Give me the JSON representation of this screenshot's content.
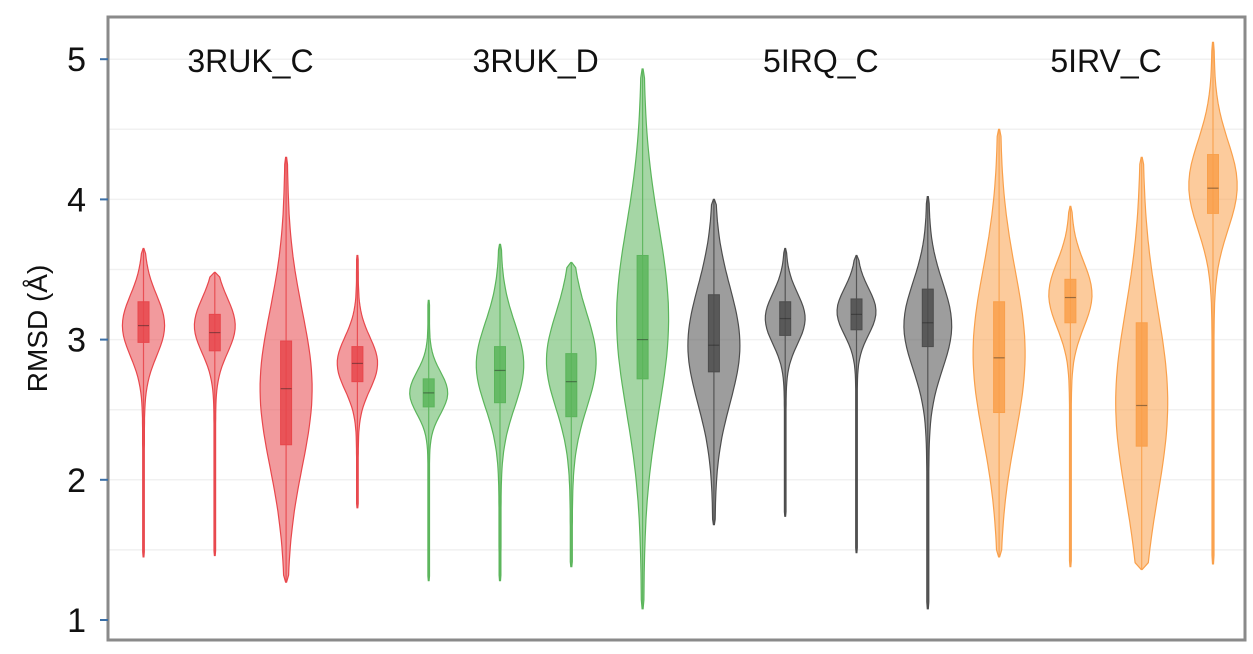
{
  "chart_data": {
    "type": "violin",
    "ylabel": "RMSD (Å)",
    "ylim": [
      1,
      5.3
    ],
    "yticks": [
      1,
      2,
      3,
      4,
      5
    ],
    "grid": true,
    "groups": [
      {
        "label": "3RUK_C",
        "color": "#e8474c",
        "violins": [
          {
            "min": 1.45,
            "max": 3.65,
            "q1": 2.98,
            "median": 3.1,
            "q3": 3.27,
            "mode": 3.1
          },
          {
            "min": 1.46,
            "max": 3.48,
            "q1": 2.92,
            "median": 3.05,
            "q3": 3.18,
            "mode": 3.1
          },
          {
            "min": 1.27,
            "max": 4.3,
            "q1": 2.25,
            "median": 2.65,
            "q3": 2.99,
            "mode": 2.65
          },
          {
            "min": 1.8,
            "max": 3.6,
            "q1": 2.7,
            "median": 2.83,
            "q3": 2.95,
            "mode": 2.83
          }
        ]
      },
      {
        "label": "3RUK_D",
        "color": "#5bb55b",
        "violins": [
          {
            "min": 1.28,
            "max": 3.28,
            "q1": 2.52,
            "median": 2.62,
            "q3": 2.72,
            "mode": 2.62
          },
          {
            "min": 1.28,
            "max": 3.68,
            "q1": 2.55,
            "median": 2.78,
            "q3": 2.95,
            "mode": 2.82
          },
          {
            "min": 1.38,
            "max": 3.55,
            "q1": 2.45,
            "median": 2.7,
            "q3": 2.9,
            "mode": 2.85
          },
          {
            "min": 1.08,
            "max": 4.93,
            "q1": 2.72,
            "median": 3.0,
            "q3": 3.6,
            "mode": 3.15
          }
        ]
      },
      {
        "label": "5IRQ_C",
        "color": "#4d4d4d",
        "violins": [
          {
            "min": 1.68,
            "max": 4.0,
            "q1": 2.77,
            "median": 2.96,
            "q3": 3.32,
            "mode": 2.96
          },
          {
            "min": 1.74,
            "max": 3.65,
            "q1": 3.03,
            "median": 3.15,
            "q3": 3.27,
            "mode": 3.15
          },
          {
            "min": 1.48,
            "max": 3.6,
            "q1": 3.07,
            "median": 3.18,
            "q3": 3.29,
            "mode": 3.2
          },
          {
            "min": 1.08,
            "max": 4.02,
            "q1": 2.95,
            "median": 3.12,
            "q3": 3.36,
            "mode": 3.1
          }
        ]
      },
      {
        "label": "5IRV_C",
        "color": "#f9a04b",
        "violins": [
          {
            "min": 1.45,
            "max": 4.5,
            "q1": 2.48,
            "median": 2.87,
            "q3": 3.27,
            "mode": 2.9
          },
          {
            "min": 1.38,
            "max": 3.95,
            "q1": 3.12,
            "median": 3.3,
            "q3": 3.43,
            "mode": 3.32
          },
          {
            "min": 1.36,
            "max": 4.3,
            "q1": 2.24,
            "median": 2.53,
            "q3": 3.12,
            "mode": 2.55
          },
          {
            "min": 1.4,
            "max": 5.12,
            "q1": 3.9,
            "median": 4.08,
            "q3": 4.32,
            "mode": 4.1
          }
        ]
      }
    ]
  }
}
